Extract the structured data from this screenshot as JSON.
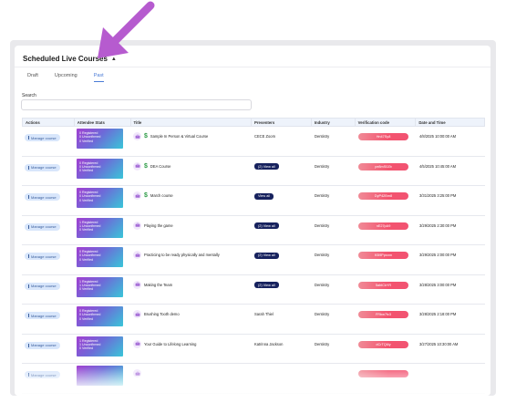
{
  "header": {
    "title": "Scheduled Live Courses"
  },
  "tabs": [
    {
      "label": "Draft"
    },
    {
      "label": "Upcoming"
    },
    {
      "label": "Past"
    }
  ],
  "active_tab": "Past",
  "search": {
    "label": "Search",
    "value": "",
    "placeholder": ""
  },
  "colors": {
    "accent": "#4a7bd6",
    "manage": "#d8e6fb",
    "view": "#17225e",
    "verification": "#f3536e"
  },
  "table": {
    "columns": [
      "Actions",
      "Attendee Stats",
      "Title",
      "Presenters",
      "Industry",
      "Verification code",
      "Date and Time"
    ],
    "rows": [
      {
        "action": "Manage course",
        "stats": [
          "0 Registered",
          "0 Unconfirmed",
          "0 Verified"
        ],
        "title": "Sample In Person & Virtual Course",
        "presenter": "CECE Zoom",
        "view": "",
        "industry": "Dentistry",
        "code": "Hn47Sy8",
        "date": "4/8/2025 10:00:00 AM",
        "dollar": true
      },
      {
        "action": "Manage course",
        "stats": [
          "0 Registered",
          "0 Unconfirmed",
          "0 Verified"
        ],
        "title": "DEA Course",
        "presenter": "",
        "view": "(2) View all",
        "industry": "Dentistry",
        "code": "pe8mS0Zb",
        "date": "4/5/2025 10:45:00 AM",
        "dollar": true
      },
      {
        "action": "Manage course",
        "stats": [
          "0 Registered",
          "0 Unconfirmed",
          "0 Verified"
        ],
        "title": "March course",
        "presenter": "",
        "view": "View all",
        "industry": "Dentistry",
        "code": "DyP42Bm8",
        "date": "3/31/2025 3:25:00 PM",
        "dollar": true
      },
      {
        "action": "Manage course",
        "stats": [
          "1 Registered",
          "1 Unconfirmed",
          "0 Verified"
        ],
        "title": "Playing the game",
        "presenter": "",
        "view": "(2) View all",
        "industry": "Dentistry",
        "code": "nE27pA9",
        "date": "3/29/2025 2:30:00 PM",
        "dollar": false
      },
      {
        "action": "Manage course",
        "stats": [
          "0 Registered",
          "0 Unconfirmed",
          "0 Verified"
        ],
        "title": "Practicing to be ready physically and mentally",
        "presenter": "",
        "view": "(2) View all",
        "industry": "Dentistry",
        "code": "KB9Ppsnm",
        "date": "3/29/2025 2:00:00 PM",
        "dollar": false
      },
      {
        "action": "Manage course",
        "stats": [
          "1 Registered",
          "1 Unconfirmed",
          "0 Verified"
        ],
        "title": "Making the Team",
        "presenter": "",
        "view": "(2) View all",
        "industry": "Dentistry",
        "code": "5ahtCkYR",
        "date": "3/28/2025 3:00:00 PM",
        "dollar": false
      },
      {
        "action": "Manage course",
        "stats": [
          "0 Registered",
          "0 Unconfirmed",
          "0 Verified"
        ],
        "title": "Brushing Tooth demo",
        "presenter": "Sarah Thiel",
        "view": "",
        "industry": "Dentistry",
        "code": "FRbw7fc3",
        "date": "3/28/2025 2:18:00 PM",
        "dollar": false
      },
      {
        "action": "Manage course",
        "stats": [
          "1 Registered",
          "1 Unconfirmed",
          "0 Verified"
        ],
        "title": "Your Guide to Lifelong Learning",
        "presenter": "Katrinna Jackson",
        "view": "",
        "industry": "Dentistry",
        "code": "dCrTQ6ly",
        "date": "3/27/2025 10:30:00 AM",
        "dollar": false
      },
      {
        "action": "Manage course",
        "stats": [
          "",
          "",
          ""
        ],
        "title": "",
        "presenter": "",
        "view": "",
        "industry": "",
        "code": "",
        "date": "",
        "dollar": false
      }
    ]
  }
}
